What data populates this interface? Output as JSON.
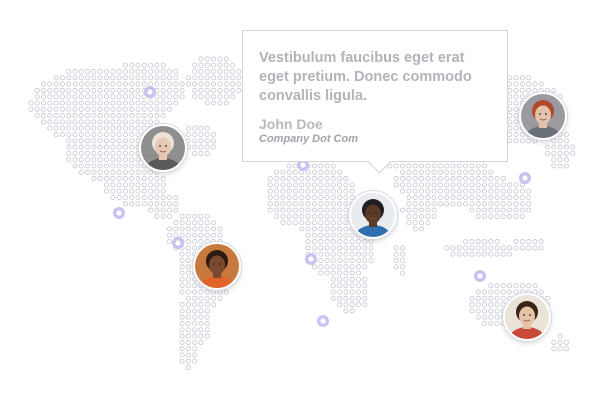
{
  "testimonial": {
    "quote": "Vestibulum faucibus eget erat eget pretium. Donec commodo convallis ligula.",
    "name": "John Doe",
    "company": "Company Dot Com"
  },
  "colors": {
    "dot": "#c9cbd6",
    "marker": "#c3bdf0",
    "marker_core": "#ffffff",
    "border": "#d3d3d8",
    "quote_text": "#b3b3ba"
  },
  "avatars": [
    {
      "id": "north-america",
      "icon": "woman-blonde-portrait",
      "skin": "#e7c8b4",
      "hair": "#ece3d6",
      "shirt": "#5a5a5a",
      "bg": "#8f8f8f"
    },
    {
      "id": "south-america",
      "icon": "woman-smiling-portrait",
      "skin": "#7a4a30",
      "hair": "#2b1a12",
      "shirt": "#e0642a",
      "bg": "#c7783d"
    },
    {
      "id": "africa",
      "icon": "man-cap-portrait",
      "skin": "#5b3a28",
      "hair": "#1e1e24",
      "shirt": "#2f6fb0",
      "bg": "#e9ecef"
    },
    {
      "id": "russia",
      "icon": "man-red-hair-portrait",
      "skin": "#e2c2ad",
      "hair": "#b04a2a",
      "shirt": "#6a7078",
      "bg": "#9a9aa0"
    },
    {
      "id": "australia",
      "icon": "man-glasses-portrait",
      "skin": "#e6c3a6",
      "hair": "#3a2418",
      "shirt": "#c84a3a",
      "bg": "#eae3d8"
    }
  ],
  "markers": [
    "marker-canada",
    "marker-mexico",
    "marker-colombia",
    "marker-europe",
    "marker-west-africa",
    "marker-madagascar",
    "marker-japan",
    "marker-indonesia"
  ]
}
